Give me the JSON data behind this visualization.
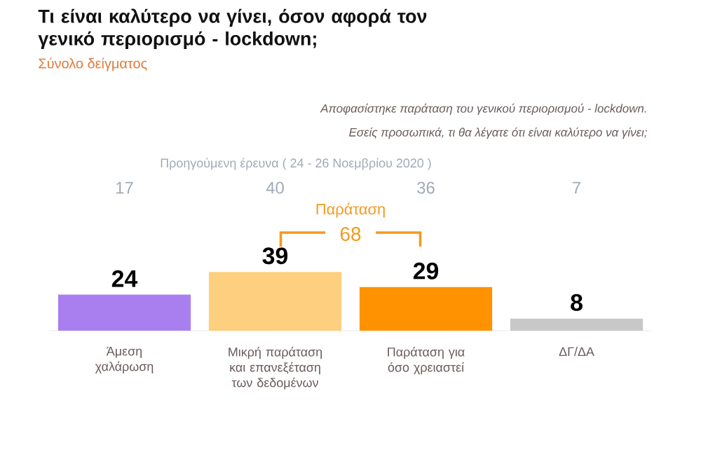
{
  "chart_data": {
    "type": "bar",
    "title": "Τι είναι καλύτερο να γίνει, όσον αφορά τον γενικό περιορισμό - lockdown;",
    "subtitle": "Σύνολο δείγματος",
    "categories": [
      "Άμεση χαλάρωση",
      "Μικρή παράταση και επανεξέταση των δεδομένων",
      "Παράταση για όσο χρειαστεί",
      "ΔΓ/ΔΑ"
    ],
    "values": [
      24,
      39,
      29,
      8
    ],
    "colors": [
      "#a97ff0",
      "#fdcf7f",
      "#ff9200",
      "#c8c8c8"
    ],
    "data_labels": true,
    "annotations": [
      "Αποφασίστηκε παράταση του γενικού περιορισμού - lockdown.",
      "Εσείς προσωπικά, τι θα λέγατε ότι είναι καλύτερο να γίνει;",
      "Προηγούμενη έρευνα ( 24 - 26 Νοεμβρίου 2020 )",
      "17",
      "40",
      "36",
      "7",
      "Παράταση",
      "68"
    ]
  }
}
